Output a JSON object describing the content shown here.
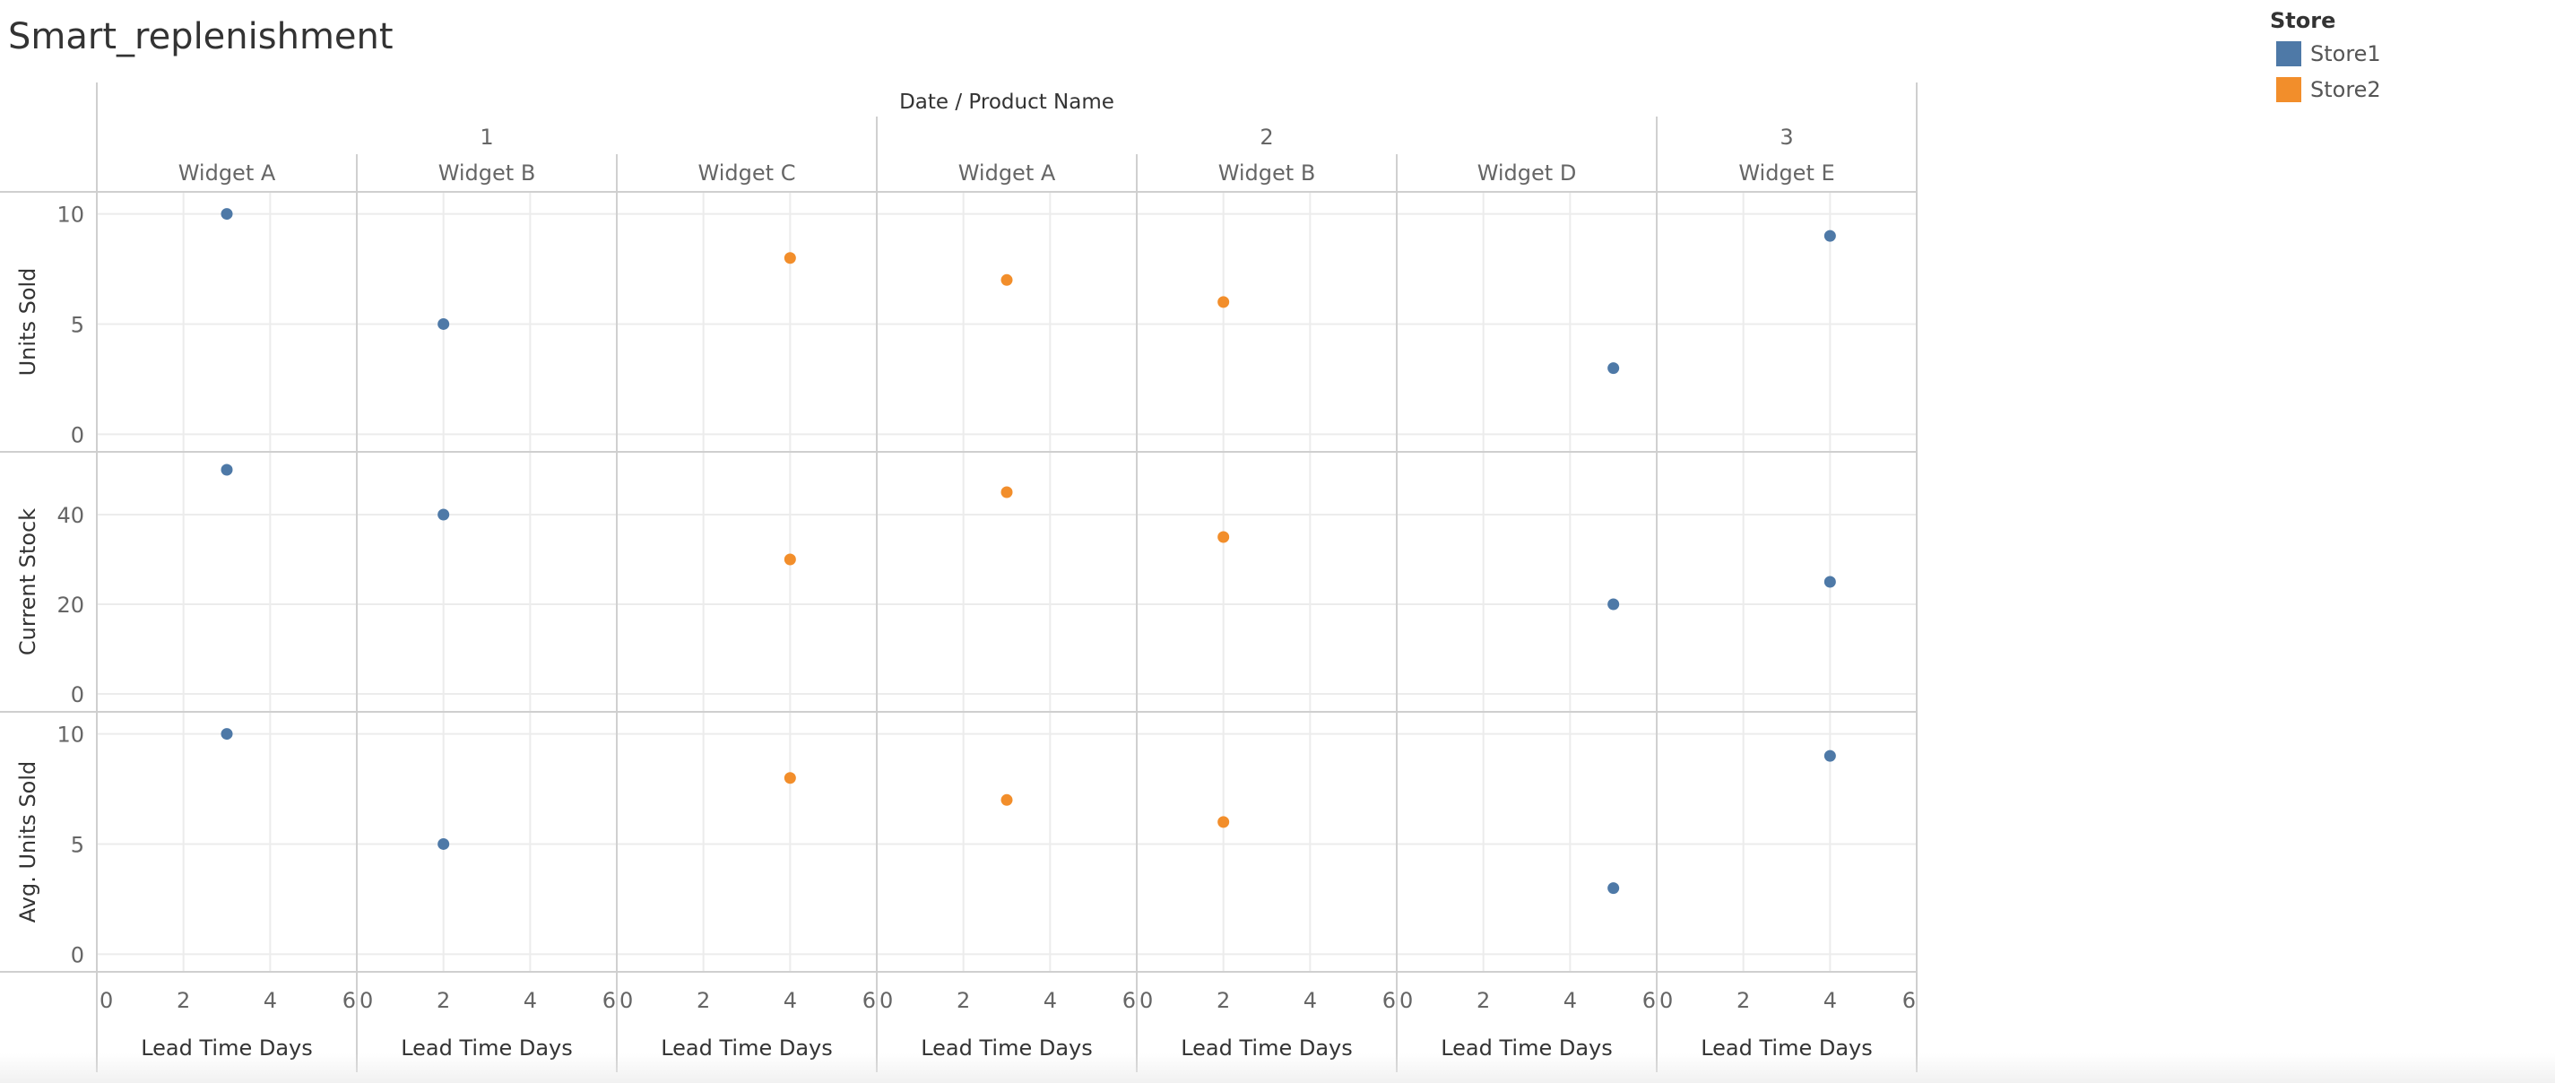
{
  "sheet": {
    "title": "Smart_replenishment"
  },
  "legend": {
    "title": "Store",
    "items": [
      {
        "label": "Store1",
        "color": "#4e79a7"
      },
      {
        "label": "Store2",
        "color": "#f28e2b"
      }
    ]
  },
  "chart_data": {
    "type": "scatter",
    "column_header_title": "Date / Product Name",
    "date_groups": [
      {
        "label": "1",
        "products": [
          "Widget A",
          "Widget B",
          "Widget C"
        ]
      },
      {
        "label": "2",
        "products": [
          "Widget A",
          "Widget B",
          "Widget D"
        ]
      },
      {
        "label": "3",
        "products": [
          "Widget E"
        ]
      }
    ],
    "xlabel": "Lead Time Days",
    "xlim": [
      0,
      6
    ],
    "x_ticks": [
      "0",
      "2",
      "4",
      "6"
    ],
    "grid": true,
    "rows": [
      {
        "measure": "Units Sold",
        "ylim": [
          -0.8,
          11
        ],
        "y_ticks": [
          {
            "value": 0,
            "label": "0"
          },
          {
            "value": 5,
            "label": "5"
          },
          {
            "value": 10,
            "label": "10"
          }
        ]
      },
      {
        "measure": "Current Stock",
        "ylim": [
          -4,
          54
        ],
        "y_ticks": [
          {
            "value": 0,
            "label": "0"
          },
          {
            "value": 20,
            "label": "20"
          },
          {
            "value": 40,
            "label": "40"
          }
        ]
      },
      {
        "measure": "Avg. Units Sold",
        "ylim": [
          -0.8,
          11
        ],
        "y_ticks": [
          {
            "value": 0,
            "label": "0"
          },
          {
            "value": 5,
            "label": "5"
          },
          {
            "value": 10,
            "label": "10"
          }
        ]
      }
    ],
    "points": [
      {
        "date": "1",
        "product": "Widget A",
        "store": "Store1",
        "lead_time_days": 3,
        "units_sold": 10,
        "current_stock": 50,
        "avg_units_sold": 10
      },
      {
        "date": "1",
        "product": "Widget B",
        "store": "Store1",
        "lead_time_days": 2,
        "units_sold": 5,
        "current_stock": 40,
        "avg_units_sold": 5
      },
      {
        "date": "1",
        "product": "Widget C",
        "store": "Store2",
        "lead_time_days": 4,
        "units_sold": 8,
        "current_stock": 30,
        "avg_units_sold": 8
      },
      {
        "date": "2",
        "product": "Widget A",
        "store": "Store2",
        "lead_time_days": 3,
        "units_sold": 7,
        "current_stock": 45,
        "avg_units_sold": 7
      },
      {
        "date": "2",
        "product": "Widget B",
        "store": "Store2",
        "lead_time_days": 2,
        "units_sold": 6,
        "current_stock": 35,
        "avg_units_sold": 6
      },
      {
        "date": "2",
        "product": "Widget D",
        "store": "Store1",
        "lead_time_days": 5,
        "units_sold": 3,
        "current_stock": 20,
        "avg_units_sold": 3
      },
      {
        "date": "3",
        "product": "Widget E",
        "store": "Store1",
        "lead_time_days": 4,
        "units_sold": 9,
        "current_stock": 25,
        "avg_units_sold": 9
      }
    ]
  }
}
